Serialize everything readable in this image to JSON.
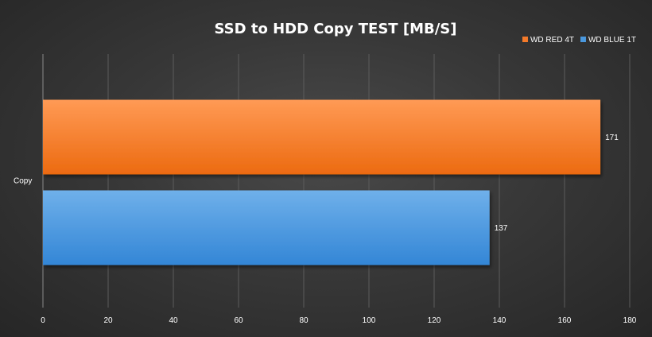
{
  "chart_data": {
    "type": "bar",
    "orientation": "horizontal",
    "title": "SSD to HDD Copy TEST [MB/S]",
    "categories": [
      "Copy"
    ],
    "series": [
      {
        "name": "WD RED 4T",
        "values": [
          171
        ],
        "color": "#f47a2a"
      },
      {
        "name": "WD BLUE 1T",
        "values": [
          137
        ],
        "color": "#4a98de"
      }
    ],
    "xlim": [
      0,
      180
    ],
    "x_ticks": [
      0,
      20,
      40,
      60,
      80,
      100,
      120,
      140,
      160,
      180
    ],
    "grid": true,
    "legend_position": "top-right",
    "data_labels": true
  }
}
